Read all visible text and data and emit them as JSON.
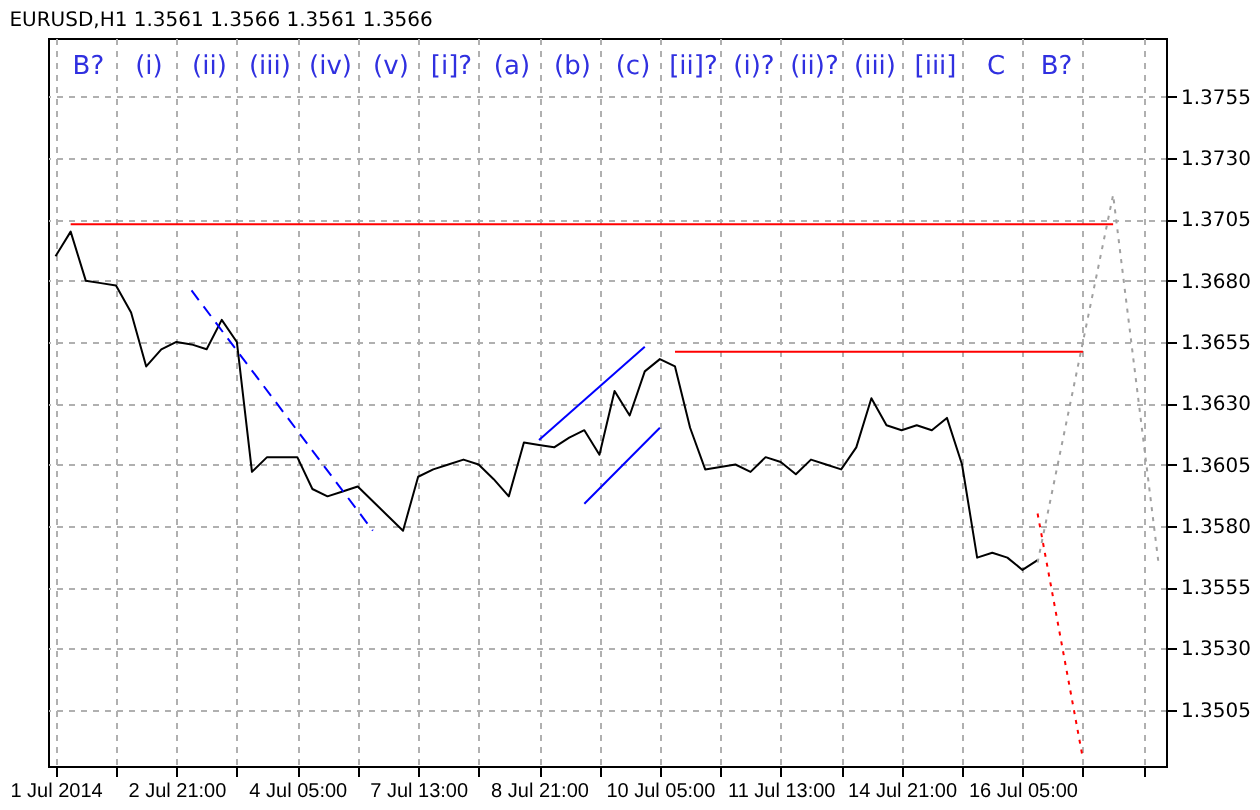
{
  "chart_data": {
    "type": "line",
    "title": "EURUSD,H1  1.3561 1.3566 1.3561 1.3566",
    "categories": [
      "1 Jul 2014",
      null,
      null,
      null,
      null,
      null,
      null,
      null,
      "2 Jul 21:00",
      null,
      null,
      null,
      null,
      null,
      null,
      null,
      "4 Jul 05:00",
      null,
      null,
      null,
      null,
      null,
      null,
      null,
      "7 Jul 13:00",
      null,
      null,
      null,
      null,
      null,
      null,
      null,
      "8 Jul 21:00",
      null,
      null,
      null,
      null,
      null,
      null,
      null,
      "10 Jul 05:00",
      null,
      null,
      null,
      null,
      null,
      null,
      null,
      "11 Jul 13:00",
      null,
      null,
      null,
      null,
      null,
      null,
      null,
      "14 Jul 21:00",
      null,
      null,
      null,
      null,
      null,
      null,
      null,
      "16 Jul 05:00",
      null,
      null,
      null,
      null,
      null,
      null,
      null,
      null,
      null
    ],
    "ylim": [
      1.3482,
      1.3779
    ],
    "yticks": [
      1.3505,
      {
        "value": 1.353,
        "label": "1.3530"
      },
      1.3555,
      {
        "value": 1.358,
        "label": "1.3580"
      },
      1.3605,
      {
        "value": 1.363,
        "label": "1.3630"
      },
      1.3655,
      {
        "value": 1.368,
        "label": "1.3680"
      },
      1.3705,
      {
        "value": 1.373,
        "label": "1.3730"
      },
      1.3755
    ],
    "grid": true,
    "marker": "none",
    "series": [
      {
        "color": "#000000",
        "line_style": "solid",
        "values": [
          1.369,
          1.37,
          1.368,
          1.3679,
          1.3678,
          1.3667,
          1.3645,
          1.3652,
          1.3655,
          1.3654,
          1.3652,
          1.3664,
          1.3655,
          1.3602,
          1.3608,
          1.3608,
          1.3608,
          1.3595,
          1.3592,
          1.3594,
          1.3596,
          1.359,
          1.3584,
          1.3578,
          1.36,
          1.3603,
          1.3605,
          1.3607,
          1.3605,
          1.3599,
          1.3592,
          1.3614,
          1.3613,
          1.3612,
          1.3616,
          1.3619,
          1.3609,
          1.3635,
          1.3625,
          1.3643,
          1.3648,
          1.3645,
          1.362,
          1.3603,
          1.3604,
          1.3605,
          1.3602,
          1.3608,
          1.3606,
          1.3601,
          1.3607,
          1.3605,
          1.3603,
          1.3612,
          1.3632,
          1.3621,
          1.3619,
          1.3621,
          1.3619,
          1.3624,
          1.3605,
          1.3567,
          1.3569,
          1.3567,
          1.3562,
          1.3566,
          null,
          null,
          null,
          null,
          null,
          null,
          null,
          null
        ]
      },
      {
        "color": "#ff0000",
        "line_style": "solid",
        "values": [
          null,
          1.3703,
          null,
          null,
          null,
          null,
          null,
          null,
          null,
          null,
          null,
          null,
          null,
          null,
          null,
          null,
          null,
          null,
          null,
          null,
          null,
          null,
          null,
          null,
          null,
          null,
          null,
          null,
          null,
          null,
          null,
          null,
          null,
          null,
          null,
          null,
          null,
          null,
          null,
          null,
          null,
          null,
          null,
          null,
          null,
          null,
          null,
          null,
          null,
          null,
          null,
          null,
          null,
          null,
          null,
          null,
          null,
          null,
          null,
          null,
          null,
          null,
          null,
          null,
          null,
          null,
          null,
          null,
          null,
          null,
          1.3703,
          null,
          null,
          null
        ]
      },
      {
        "color": "#ff0000",
        "line_style": "solid",
        "values": [
          null,
          null,
          null,
          null,
          null,
          null,
          null,
          null,
          null,
          null,
          null,
          null,
          null,
          null,
          null,
          null,
          null,
          null,
          null,
          null,
          null,
          null,
          null,
          null,
          null,
          null,
          null,
          null,
          null,
          null,
          null,
          null,
          null,
          null,
          null,
          null,
          null,
          null,
          null,
          null,
          null,
          1.3651,
          null,
          null,
          null,
          null,
          null,
          null,
          null,
          null,
          null,
          null,
          null,
          null,
          null,
          null,
          null,
          null,
          null,
          null,
          null,
          null,
          null,
          null,
          null,
          null,
          null,
          null,
          1.3651,
          null,
          null,
          null,
          null,
          null
        ]
      },
      {
        "color": "#0000ff",
        "line_style": "dashed",
        "values": [
          null,
          null,
          null,
          null,
          null,
          null,
          null,
          null,
          null,
          1.3676,
          null,
          null,
          null,
          null,
          null,
          null,
          null,
          null,
          null,
          null,
          null,
          1.3578,
          null,
          null,
          null,
          null,
          null,
          null,
          null,
          null,
          null,
          null,
          null,
          null,
          null,
          null,
          null,
          null,
          null,
          null,
          null,
          null,
          null,
          null,
          null,
          null,
          null,
          null,
          null,
          null,
          null,
          null,
          null,
          null,
          null,
          null,
          null,
          null,
          null,
          null,
          null,
          null,
          null,
          null,
          null,
          null,
          null,
          null,
          null,
          null,
          null,
          null,
          null,
          null
        ]
      },
      {
        "color": "#0000ff",
        "line_style": "solid",
        "values": [
          null,
          null,
          null,
          null,
          null,
          null,
          null,
          null,
          null,
          null,
          null,
          null,
          null,
          null,
          null,
          null,
          null,
          null,
          null,
          null,
          null,
          null,
          null,
          null,
          null,
          null,
          null,
          null,
          null,
          null,
          null,
          null,
          1.3615,
          null,
          null,
          null,
          null,
          null,
          null,
          1.3653,
          null,
          null,
          null,
          null,
          null,
          null,
          null,
          null,
          null,
          null,
          null,
          null,
          null,
          null,
          null,
          null,
          null,
          null,
          null,
          null,
          null,
          null,
          null,
          null,
          null,
          null,
          null,
          null,
          null,
          null,
          null,
          null,
          null,
          null
        ]
      },
      {
        "color": "#0000ff",
        "line_style": "solid",
        "values": [
          null,
          null,
          null,
          null,
          null,
          null,
          null,
          null,
          null,
          null,
          null,
          null,
          null,
          null,
          null,
          null,
          null,
          null,
          null,
          null,
          null,
          null,
          null,
          null,
          null,
          null,
          null,
          null,
          null,
          null,
          null,
          null,
          null,
          null,
          null,
          1.3589,
          null,
          null,
          null,
          null,
          1.362,
          null,
          null,
          null,
          null,
          null,
          null,
          null,
          null,
          null,
          null,
          null,
          null,
          null,
          null,
          null,
          null,
          null,
          null,
          null,
          null,
          null,
          null,
          null,
          null,
          null,
          null,
          null,
          null,
          null,
          null,
          null,
          null,
          null
        ]
      },
      {
        "color": "#a0a0a0",
        "line_style": "dotted",
        "values": [
          null,
          null,
          null,
          null,
          null,
          null,
          null,
          null,
          null,
          null,
          null,
          null,
          null,
          null,
          null,
          null,
          null,
          null,
          null,
          null,
          null,
          null,
          null,
          null,
          null,
          null,
          null,
          null,
          null,
          null,
          null,
          null,
          null,
          null,
          null,
          null,
          null,
          null,
          null,
          null,
          null,
          null,
          null,
          null,
          null,
          null,
          null,
          null,
          null,
          null,
          null,
          null,
          null,
          null,
          null,
          null,
          null,
          null,
          null,
          null,
          null,
          null,
          null,
          null,
          null,
          1.3565,
          null,
          null,
          null,
          null,
          1.3715,
          null,
          null,
          1.3565
        ]
      },
      {
        "color": "#ff0000",
        "line_style": "dotted",
        "values": [
          null,
          null,
          null,
          null,
          null,
          null,
          null,
          null,
          null,
          null,
          null,
          null,
          null,
          null,
          null,
          null,
          null,
          null,
          null,
          null,
          null,
          null,
          null,
          null,
          null,
          null,
          null,
          null,
          null,
          null,
          null,
          null,
          null,
          null,
          null,
          null,
          null,
          null,
          null,
          null,
          null,
          null,
          null,
          null,
          null,
          null,
          null,
          null,
          null,
          null,
          null,
          null,
          null,
          null,
          null,
          null,
          null,
          null,
          null,
          null,
          null,
          null,
          null,
          null,
          null,
          1.3585,
          null,
          null,
          1.3485,
          null,
          null,
          null,
          null,
          null
        ]
      }
    ],
    "annotations": [
      "B?",
      "(i)",
      "(ii)",
      "(iii)",
      "(iv)",
      "(v)",
      "[i]?",
      "(a)",
      "(b)",
      "(c)",
      "[ii]?",
      "(i)?",
      "(ii)?",
      "(iii)",
      "[iii]",
      "C",
      "B?"
    ]
  }
}
